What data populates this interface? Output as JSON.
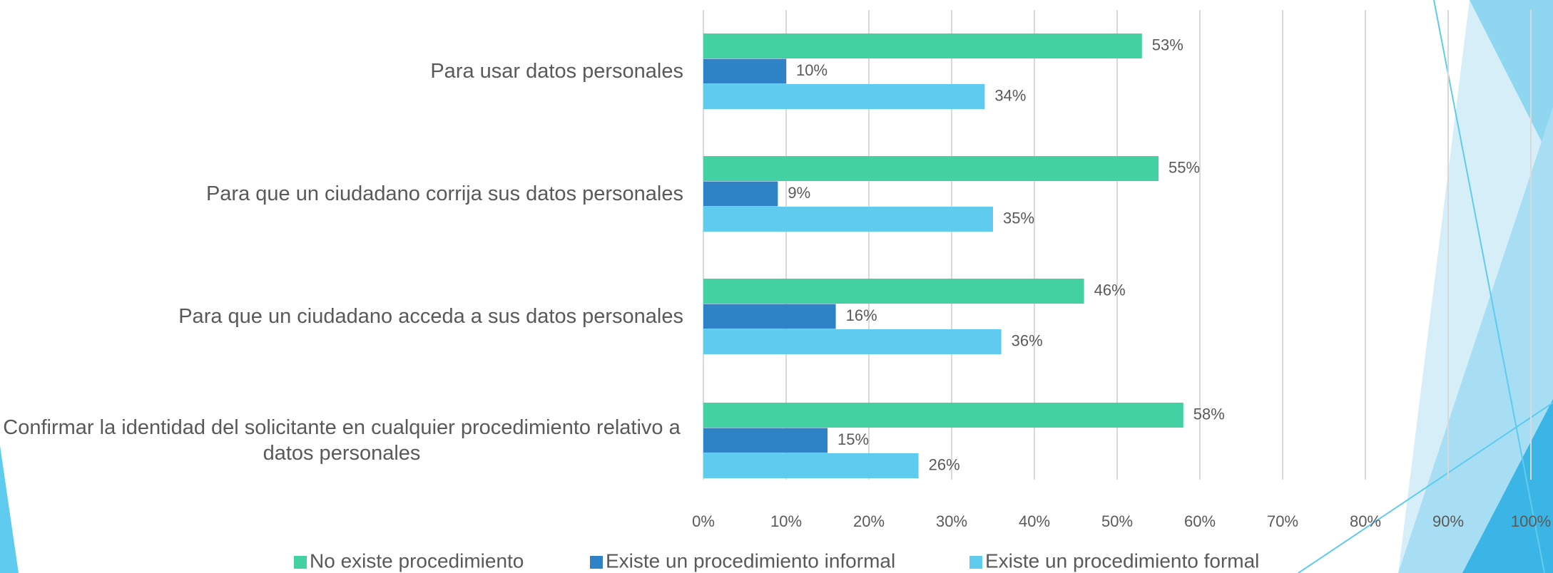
{
  "chart_data": {
    "type": "bar",
    "orientation": "horizontal",
    "categories": [
      "Para usar datos personales",
      "Para que un ciudadano corrija sus datos personales",
      "Para que un ciudadano acceda a sus datos personales",
      "Confirmar la identidad del solicitante en cualquier procedimiento relativo a datos personales"
    ],
    "series": [
      {
        "name": "No existe procedimiento",
        "color": "#44d1a2",
        "values": [
          53,
          55,
          46,
          58
        ],
        "value_labels": [
          "53%",
          "55%",
          "46%",
          "58%"
        ]
      },
      {
        "name": "Existe un procedimiento informal",
        "color": "#2e83c6",
        "values": [
          10,
          9,
          16,
          15
        ],
        "value_labels": [
          "10%",
          "9%",
          "16%",
          "15%"
        ]
      },
      {
        "name": "Existe un procedimiento formal",
        "color": "#5ecbef",
        "values": [
          34,
          35,
          36,
          26
        ],
        "value_labels": [
          "34%",
          "35%",
          "36%",
          "26%"
        ]
      }
    ],
    "xlim": [
      0,
      100
    ],
    "xticks": [
      {
        "value": 0,
        "label": "0%"
      },
      {
        "value": 10,
        "label": "10%"
      },
      {
        "value": 20,
        "label": "20%"
      },
      {
        "value": 30,
        "label": "30%"
      },
      {
        "value": 40,
        "label": "40%"
      },
      {
        "value": 50,
        "label": "50%"
      },
      {
        "value": 60,
        "label": "60%"
      },
      {
        "value": 70,
        "label": "70%"
      },
      {
        "value": 80,
        "label": "80%"
      },
      {
        "value": 90,
        "label": "90%"
      },
      {
        "value": 100,
        "label": "100%"
      }
    ],
    "grid": true,
    "legend": "bottom"
  }
}
